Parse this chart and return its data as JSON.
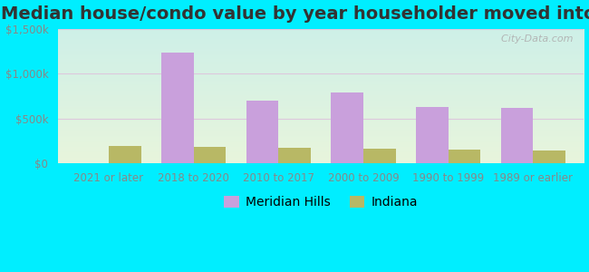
{
  "title": "Median house/condo value by year householder moved into unit",
  "categories": [
    "2021 or later",
    "2018 to 2020",
    "2010 to 2017",
    "2000 to 2009",
    "1990 to 1999",
    "1989 or earlier"
  ],
  "meridian_hills": [
    0,
    1230000,
    700000,
    790000,
    625000,
    615000
  ],
  "indiana": [
    200000,
    190000,
    175000,
    165000,
    155000,
    145000
  ],
  "ylim": [
    0,
    1500000
  ],
  "yticks": [
    0,
    500000,
    1000000,
    1500000
  ],
  "ytick_labels": [
    "$0",
    "$500k",
    "$1,000k",
    "$1,500k"
  ],
  "meridian_color": "#c9a0dc",
  "indiana_color": "#b8b865",
  "bar_width": 0.38,
  "background_outer": "#00eeff",
  "grid_color": "#ddc8dd",
  "watermark": "  City-Data.com",
  "legend_labels": [
    "Meridian Hills",
    "Indiana"
  ],
  "title_fontsize": 14,
  "tick_fontsize": 8.5,
  "legend_fontsize": 10,
  "inner_bg_top": "#c8f0f0",
  "inner_bg_bottom": "#e8f5e0"
}
